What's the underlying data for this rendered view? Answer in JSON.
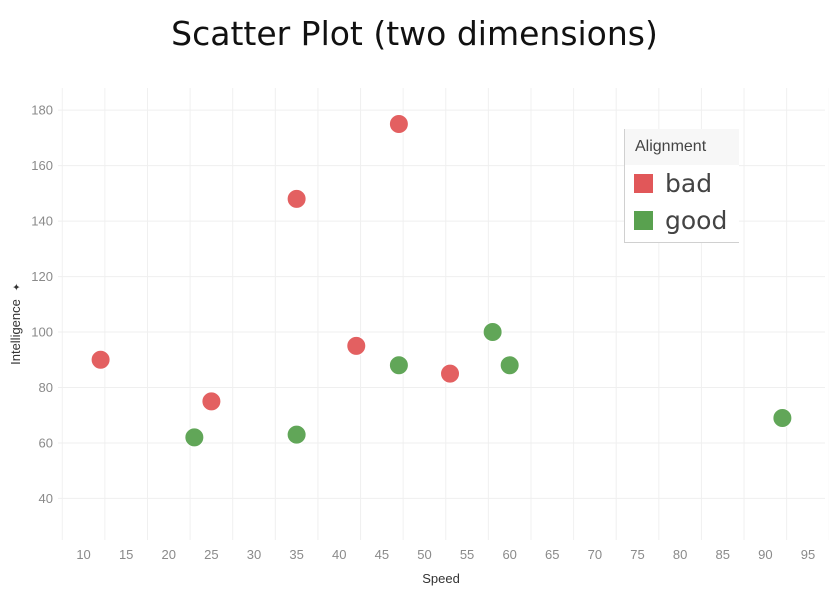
{
  "title": "Scatter Plot (two dimensions)",
  "chart_data": {
    "type": "scatter",
    "title": "Scatter Plot (two dimensions)",
    "xlabel": "Speed",
    "ylabel": "Intelligence",
    "ylabel_marker": "✦",
    "xlim": [
      7,
      97
    ],
    "ylim": [
      25,
      188
    ],
    "xticks": [
      10,
      15,
      20,
      25,
      30,
      35,
      40,
      45,
      50,
      55,
      60,
      65,
      70,
      75,
      80,
      85,
      90,
      95
    ],
    "yticks": [
      40,
      60,
      80,
      100,
      120,
      140,
      160,
      180
    ],
    "grid": true,
    "legend": {
      "title": "Alignment",
      "placement": "top-right"
    },
    "series": [
      {
        "name": "bad",
        "color": "#e15759",
        "points": [
          {
            "x": 12,
            "y": 90
          },
          {
            "x": 25,
            "y": 75
          },
          {
            "x": 35,
            "y": 148
          },
          {
            "x": 42,
            "y": 95
          },
          {
            "x": 47,
            "y": 175
          },
          {
            "x": 53,
            "y": 85
          }
        ]
      },
      {
        "name": "good",
        "color": "#59a14f",
        "points": [
          {
            "x": 23,
            "y": 62
          },
          {
            "x": 35,
            "y": 63
          },
          {
            "x": 47,
            "y": 88
          },
          {
            "x": 58,
            "y": 100
          },
          {
            "x": 60,
            "y": 88
          },
          {
            "x": 92,
            "y": 69
          }
        ]
      }
    ]
  }
}
